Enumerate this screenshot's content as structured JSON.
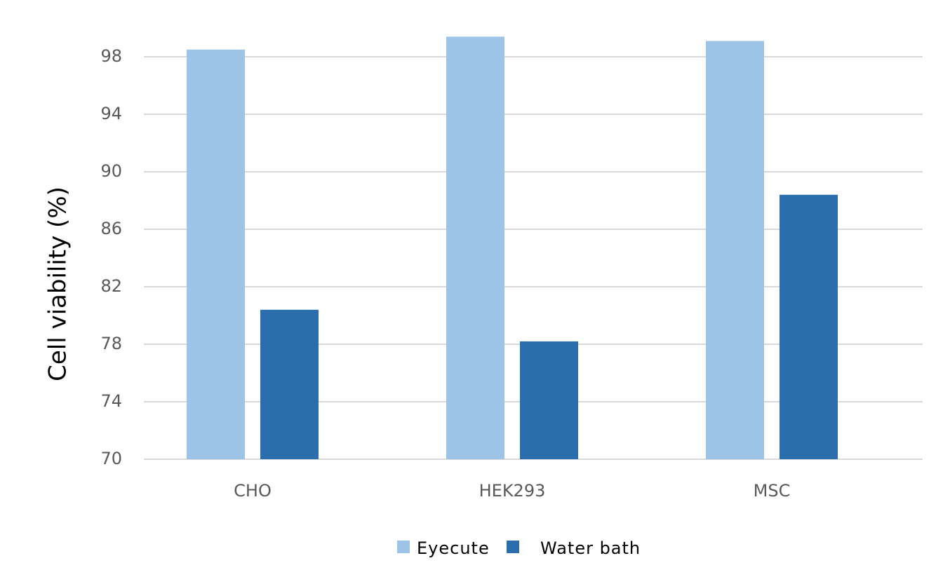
{
  "chart_data": {
    "type": "bar",
    "y_label": "Cell viability (%)",
    "categories": [
      "CHO",
      "HEK293",
      "MSC"
    ],
    "series": [
      {
        "name": "Eyecute",
        "color": "#9dc3e6",
        "values": [
          98.5,
          99.4,
          99.1
        ]
      },
      {
        "name": "Water bath",
        "color": "#2a6ead",
        "values": [
          80.4,
          78.2,
          88.4
        ]
      }
    ],
    "ylim": [
      70,
      100
    ],
    "yticks": [
      70,
      74,
      78,
      82,
      86,
      90,
      94,
      98
    ],
    "grid": true,
    "legend": "bottom"
  }
}
